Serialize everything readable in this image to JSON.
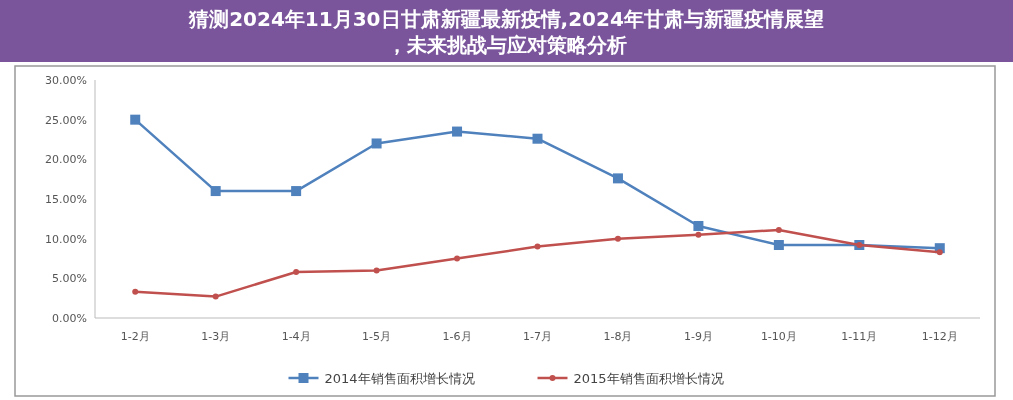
{
  "chart_data": {
    "type": "line",
    "title": "猜测2024年11月30日甘肃新疆最新疫情,2024年甘肃与新疆疫情展望，未来挑战与应对策略分析",
    "categories": [
      "1-2月",
      "1-3月",
      "1-4月",
      "1-5月",
      "1-6月",
      "1-7月",
      "1-8月",
      "1-9月",
      "1-10月",
      "1-11月",
      "1-12月"
    ],
    "series": [
      {
        "name": "2014年销售面积增长情况",
        "color": "#4f81bd",
        "marker": "square",
        "values": [
          25,
          16,
          16,
          22,
          23.5,
          22.6,
          17.6,
          11.6,
          9.2,
          9.2,
          8.8
        ]
      },
      {
        "name": "2015年销售面积增长情况",
        "color": "#c0504d",
        "marker": "circle",
        "values": [
          3.3,
          2.7,
          5.8,
          6,
          7.5,
          9,
          10,
          10.5,
          11.1,
          9.2,
          8.3
        ]
      }
    ],
    "ylim": [
      0,
      30
    ],
    "yticks": [
      {
        "value": 0,
        "label": "0.00%"
      },
      {
        "value": 5,
        "label": "5.00%"
      },
      {
        "value": 10,
        "label": "10.00%"
      },
      {
        "value": 15,
        "label": "15.00%"
      },
      {
        "value": 20,
        "label": "20.00%"
      },
      {
        "value": 25,
        "label": "25.00%"
      },
      {
        "value": 30,
        "label": "30.00%"
      }
    ],
    "grid": false,
    "legend": "bottom"
  }
}
